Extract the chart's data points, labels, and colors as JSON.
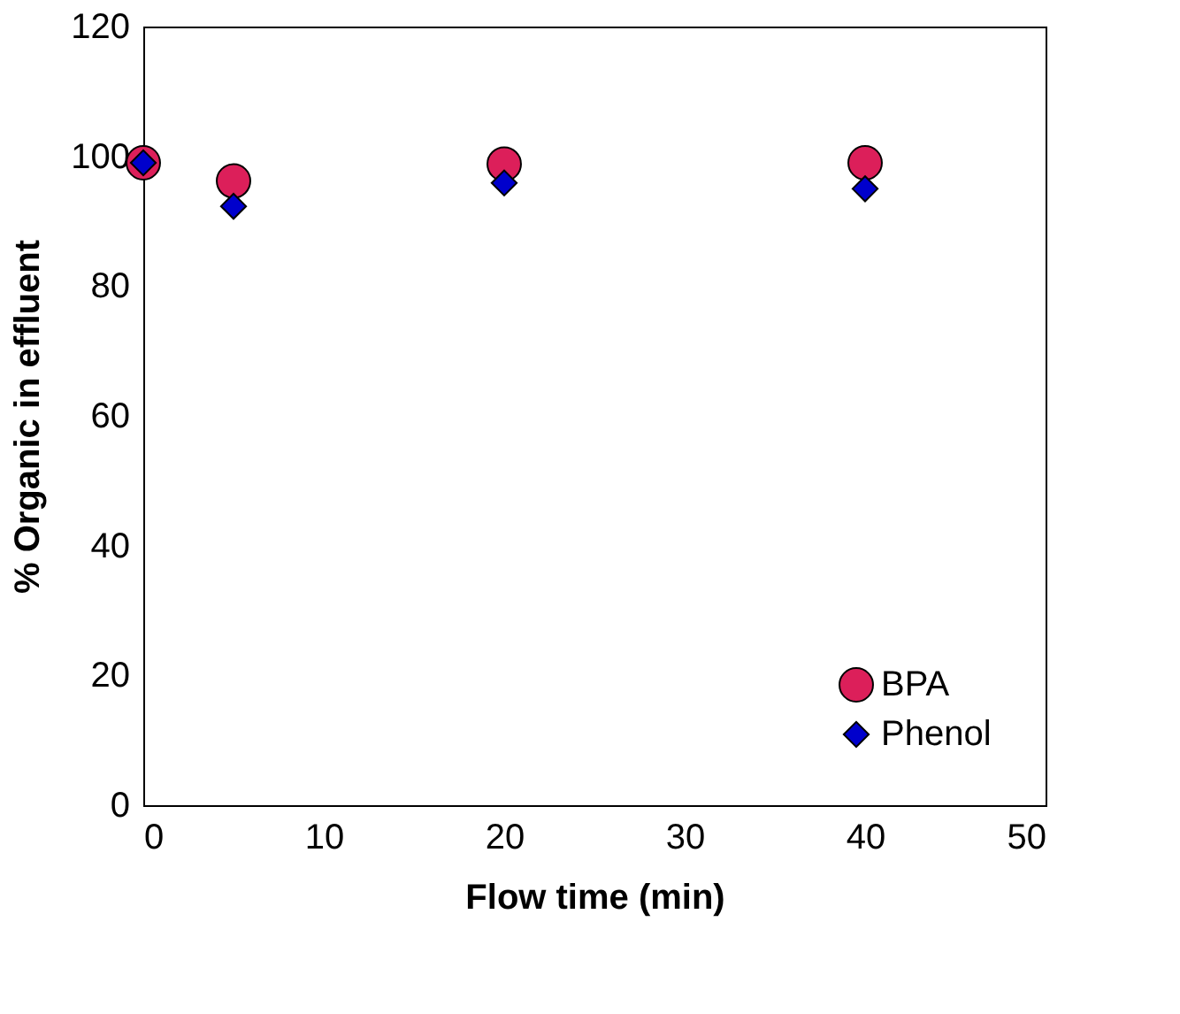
{
  "chart_data": {
    "type": "scatter",
    "xlabel": "Flow time (min)",
    "ylabel": "% Organic in effluent",
    "x": [
      0,
      5,
      20,
      40
    ],
    "series": [
      {
        "name": "BPA",
        "color": "#dc1f5a",
        "marker": "circle",
        "values": [
          99,
          96.2,
          98.8,
          99
        ]
      },
      {
        "name": "Phenol",
        "color": "#0000cc",
        "marker": "diamond",
        "values": [
          99,
          92.3,
          95.9,
          95.0
        ]
      }
    ],
    "xlim": [
      0,
      50
    ],
    "xticks": [
      0,
      10,
      20,
      30,
      40,
      50
    ],
    "ylim": [
      0,
      120
    ],
    "yticks": [
      0,
      20,
      40,
      60,
      80,
      100,
      120
    ],
    "grid": false,
    "legend": "bottom right"
  }
}
